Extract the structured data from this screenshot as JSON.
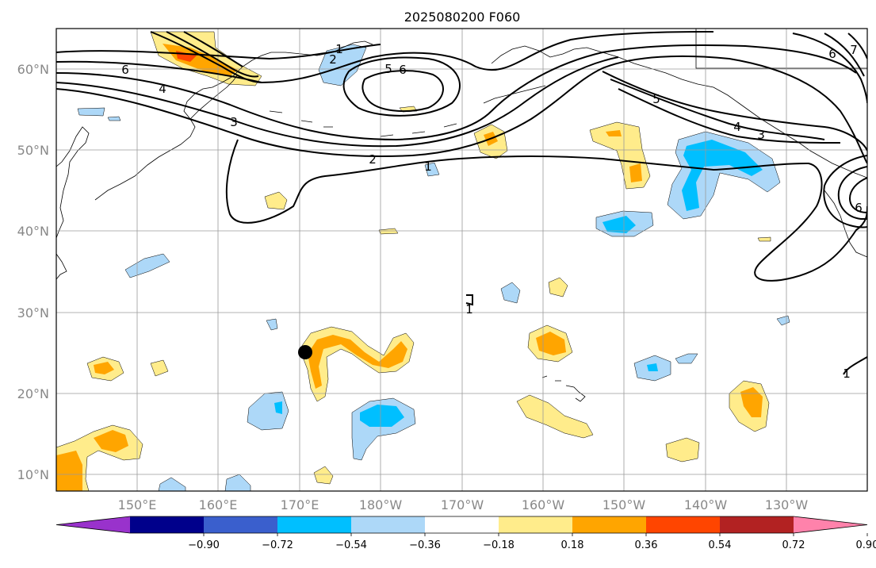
{
  "title": "2025080200 F060",
  "map": {
    "lat_labels": [
      "60°N",
      "50°N",
      "40°N",
      "30°N",
      "20°N",
      "10°N"
    ],
    "lon_labels": [
      "150°E",
      "160°E",
      "170°E",
      "180°W",
      "170°W",
      "160°W",
      "150°W",
      "140°W",
      "130°W"
    ],
    "contour_labels": [
      "1",
      "2",
      "5",
      "6",
      "6",
      "4",
      "3",
      "2",
      "1",
      "1",
      "5",
      "4",
      "3",
      "6",
      "6",
      "7",
      "1"
    ],
    "marker": "storm-center",
    "gridlines": true
  },
  "colorbar": {
    "ticks": [
      "−0.90",
      "−0.72",
      "−0.54",
      "−0.36",
      "−0.18",
      "0.18",
      "0.36",
      "0.54",
      "0.72",
      "0.90"
    ],
    "colors": [
      "#9932cc",
      "#00008b",
      "#3a5fcd",
      "#00bfff",
      "#add8f8",
      "#ffffff",
      "#ffec8b",
      "#ffa500",
      "#ff4500",
      "#b22222",
      "#ff82ab"
    ],
    "extend": "both"
  },
  "shading_colors": {
    "neg_light": "#add8f8",
    "neg_mid": "#00bfff",
    "pos_light": "#ffec8b",
    "pos_mid": "#ffa500",
    "pos_strong": "#ff4500"
  }
}
